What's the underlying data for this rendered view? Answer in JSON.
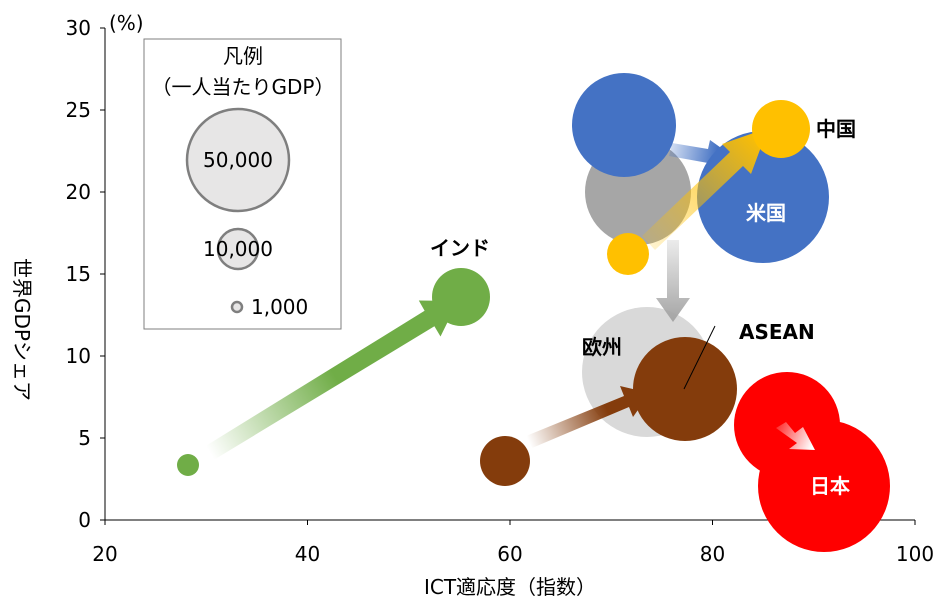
{
  "chart_data": {
    "type": "bubble",
    "xlabel": "ICT適応度（指数）",
    "ylabel": "世界GDPシェア",
    "yunit": "(%)",
    "xlim": [
      20,
      100
    ],
    "ylim": [
      0,
      30
    ],
    "xticks": [
      20,
      40,
      60,
      80,
      100
    ],
    "yticks": [
      0,
      5,
      10,
      15,
      20,
      25,
      30
    ],
    "grid": false,
    "legend": {
      "title_line1": "凡例",
      "title_line2": "（一人当たりGDP）",
      "entries": [
        "50,000",
        "10,000",
        "1,000"
      ]
    },
    "series": [
      {
        "name": "インド",
        "color": "#70AD47",
        "from": {
          "x": 28,
          "y": 3.3,
          "gdp_per_capita": 1800
        },
        "to": {
          "x": 55,
          "y": 13.6,
          "gdp_per_capita": 9000
        }
      },
      {
        "name": "ASEAN",
        "color": "#843C0C",
        "from": {
          "x": 59.5,
          "y": 3.5,
          "gdp_per_capita": 5000
        },
        "to": {
          "x": 77,
          "y": 8,
          "gdp_per_capita": 20000
        }
      },
      {
        "name": "欧州",
        "color": "#A6A6A6",
        "from": {
          "x": 73,
          "y": 19.8,
          "gdp_per_capita": 25000
        },
        "to": {
          "x": 73.5,
          "y": 9,
          "gdp_per_capita": 35000
        }
      },
      {
        "name": "米国",
        "color": "#4472C4",
        "from": {
          "x": 71,
          "y": 23.9,
          "gdp_per_capita": 45000
        },
        "to": {
          "x": 85,
          "y": 19.6,
          "gdp_per_capita": 70000
        }
      },
      {
        "name": "中国",
        "color": "#FFC000",
        "from": {
          "x": 71.5,
          "y": 16.1,
          "gdp_per_capita": 3000
        },
        "to": {
          "x": 87,
          "y": 24.1,
          "gdp_per_capita": 10000
        }
      },
      {
        "name": "日本",
        "color": "#FF0000",
        "from": {
          "x": 87.5,
          "y": 5.8,
          "gdp_per_capita": 35000
        },
        "to": {
          "x": 91,
          "y": 2.3,
          "gdp_per_capita": 55000
        }
      }
    ]
  }
}
